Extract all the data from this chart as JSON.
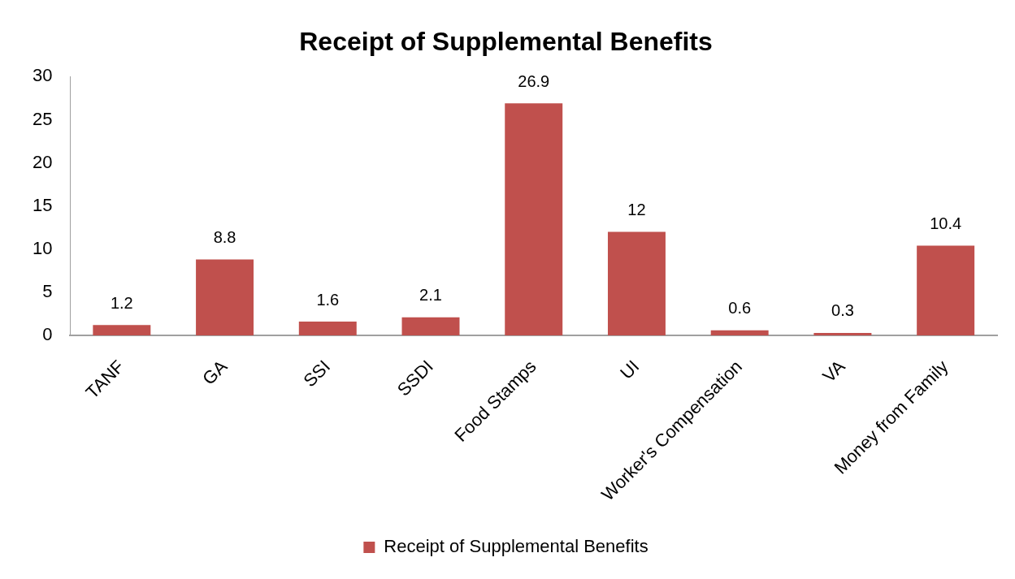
{
  "chart_data": {
    "type": "bar",
    "title": "Receipt of Supplemental Benefits",
    "categories": [
      "TANF",
      "GA",
      "SSI",
      "SSDI",
      "Food Stamps",
      "UI",
      "Worker's Compensation",
      "VA",
      "Money from Family"
    ],
    "series": [
      {
        "name": "Receipt of Supplemental Benefits",
        "color": "#c0504d",
        "values": [
          1.2,
          8.8,
          1.6,
          2.1,
          26.9,
          12,
          0.6,
          0.3,
          10.4
        ]
      }
    ],
    "ylim": [
      0,
      30
    ],
    "yticks": [
      0,
      5,
      10,
      15,
      20,
      25,
      30
    ],
    "data_labels": true,
    "legend": "bottom"
  }
}
